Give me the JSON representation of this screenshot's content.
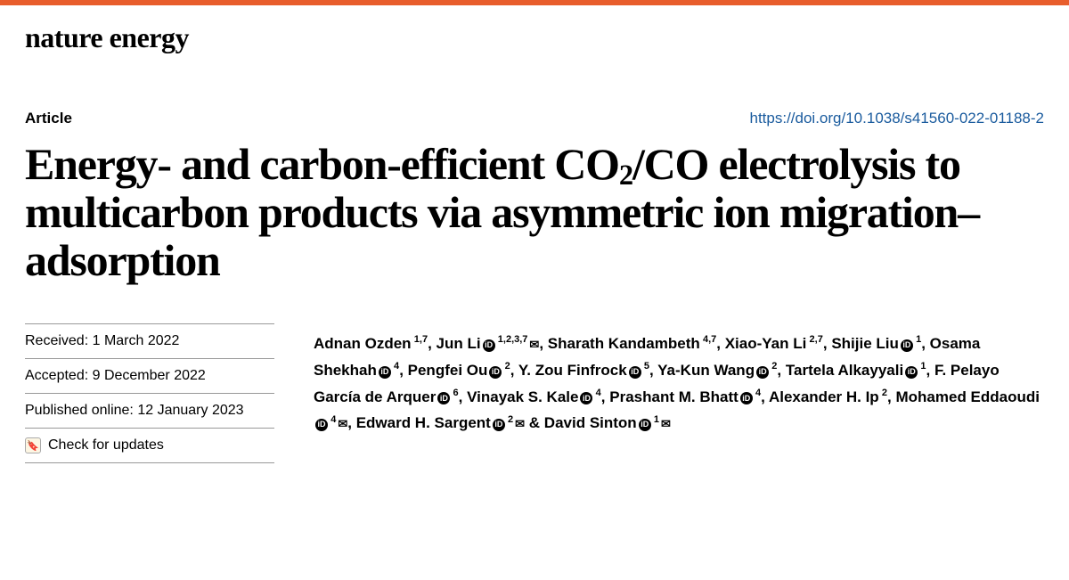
{
  "accent_color": "#e85d2c",
  "link_color": "#1a5b9e",
  "journal": "nature energy",
  "article_type": "Article",
  "doi_url": "https://doi.org/10.1038/s41560-022-01188-2",
  "title_pre": "Energy- and carbon-efficient CO",
  "title_sub": "2",
  "title_post": "/CO electrolysis to multicarbon products via asymmetric ion migration–adsorption",
  "meta": {
    "received_label": "Received:",
    "received_value": "1 March 2022",
    "accepted_label": "Accepted:",
    "accepted_value": "9 December 2022",
    "published_label": "Published online:",
    "published_value": "12 January 2023",
    "check_updates": "Check for updates"
  },
  "authors": [
    {
      "name": "Adnan Ozden",
      "aff": "1,7",
      "orcid": false,
      "mail": false
    },
    {
      "name": "Jun Li",
      "aff": "1,2,3,7",
      "orcid": true,
      "mail": true
    },
    {
      "name": "Sharath Kandambeth",
      "aff": "4,7",
      "orcid": false,
      "mail": false
    },
    {
      "name": "Xiao-Yan Li",
      "aff": "2,7",
      "orcid": false,
      "mail": false
    },
    {
      "name": "Shijie Liu",
      "aff": "1",
      "orcid": true,
      "mail": false
    },
    {
      "name": "Osama Shekhah",
      "aff": "4",
      "orcid": true,
      "mail": false
    },
    {
      "name": "Pengfei Ou",
      "aff": "2",
      "orcid": true,
      "mail": false
    },
    {
      "name": "Y. Zou Finfrock",
      "aff": "5",
      "orcid": true,
      "mail": false
    },
    {
      "name": "Ya-Kun Wang",
      "aff": "2",
      "orcid": true,
      "mail": false
    },
    {
      "name": "Tartela Alkayyali",
      "aff": "1",
      "orcid": true,
      "mail": false
    },
    {
      "name": "F. Pelayo García de Arquer",
      "aff": "6",
      "orcid": true,
      "mail": false
    },
    {
      "name": "Vinayak S. Kale",
      "aff": "4",
      "orcid": true,
      "mail": false
    },
    {
      "name": "Prashant M. Bhatt",
      "aff": "4",
      "orcid": true,
      "mail": false
    },
    {
      "name": "Alexander H. Ip",
      "aff": "2",
      "orcid": false,
      "mail": false
    },
    {
      "name": "Mohamed Eddaoudi",
      "aff": "4",
      "orcid": true,
      "mail": true
    },
    {
      "name": "Edward H. Sargent",
      "aff": "2",
      "orcid": true,
      "mail": true
    },
    {
      "name": "David Sinton",
      "aff": "1",
      "orcid": true,
      "mail": true
    }
  ]
}
